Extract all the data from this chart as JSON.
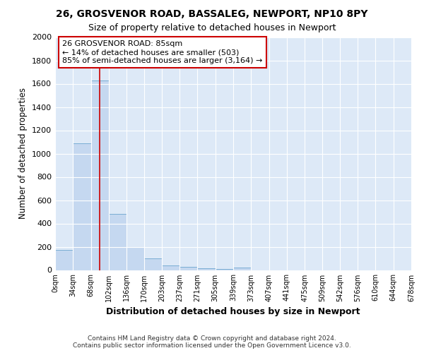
{
  "title_line1": "26, GROSVENOR ROAD, BASSALEG, NEWPORT, NP10 8PY",
  "title_line2": "Size of property relative to detached houses in Newport",
  "xlabel": "Distribution of detached houses by size in Newport",
  "ylabel": "Number of detached properties",
  "bin_edges": [
    0,
    34,
    68,
    102,
    136,
    170,
    203,
    237,
    271,
    305,
    339,
    373,
    407,
    441,
    475,
    509,
    542,
    576,
    610,
    644,
    678
  ],
  "bar_heights": [
    170,
    1090,
    1630,
    480,
    200,
    100,
    40,
    25,
    15,
    10,
    20,
    0,
    0,
    0,
    0,
    0,
    0,
    0,
    0,
    0
  ],
  "bar_color": "#c5d8f0",
  "bar_edge_color": "#7aadd4",
  "figure_background_color": "#ffffff",
  "plot_background_color": "#dde9f7",
  "grid_color": "#ffffff",
  "property_size": 85,
  "red_line_color": "#cc0000",
  "annotation_text": "26 GROSVENOR ROAD: 85sqm\n← 14% of detached houses are smaller (503)\n85% of semi-detached houses are larger (3,164) →",
  "annotation_box_color": "#ffffff",
  "annotation_box_edge": "#cc0000",
  "ylim": [
    0,
    2000
  ],
  "footer_line1": "Contains HM Land Registry data © Crown copyright and database right 2024.",
  "footer_line2": "Contains public sector information licensed under the Open Government Licence v3.0.",
  "tick_labels": [
    "0sqm",
    "34sqm",
    "68sqm",
    "102sqm",
    "136sqm",
    "170sqm",
    "203sqm",
    "237sqm",
    "271sqm",
    "305sqm",
    "339sqm",
    "373sqm",
    "407sqm",
    "441sqm",
    "475sqm",
    "509sqm",
    "542sqm",
    "576sqm",
    "610sqm",
    "644sqm",
    "678sqm"
  ]
}
